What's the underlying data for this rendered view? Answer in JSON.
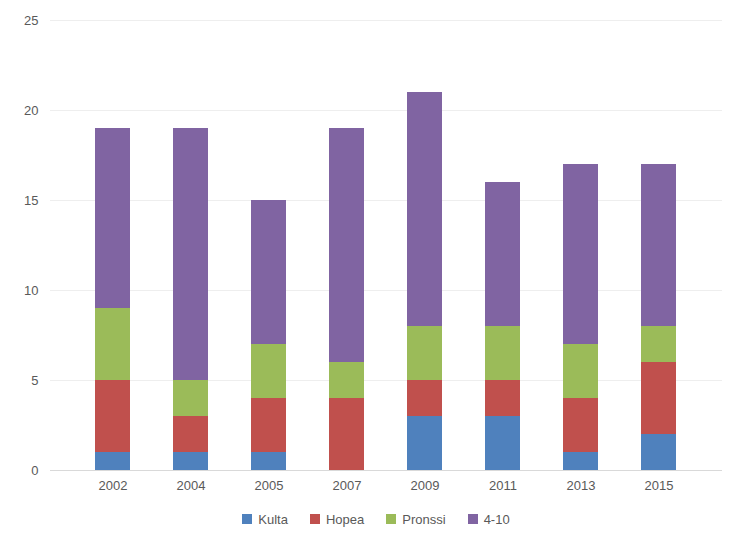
{
  "chart_data": {
    "type": "bar",
    "stacked": true,
    "categories": [
      "2002",
      "2004",
      "2005",
      "2007",
      "2009",
      "2011",
      "2013",
      "2015"
    ],
    "series": [
      {
        "name": "Kulta",
        "color": "#4f81bd",
        "values": [
          1,
          1,
          1,
          0,
          3,
          3,
          1,
          2
        ]
      },
      {
        "name": "Hopea",
        "color": "#c0504d",
        "values": [
          4,
          2,
          3,
          4,
          2,
          2,
          3,
          4
        ]
      },
      {
        "name": "Pronssi",
        "color": "#9bbb59",
        "values": [
          4,
          2,
          3,
          2,
          3,
          3,
          3,
          2
        ]
      },
      {
        "name": "4-10",
        "color": "#8064a2",
        "values": [
          10,
          14,
          8,
          13,
          13,
          8,
          10,
          9
        ]
      }
    ],
    "ylim": [
      0,
      25
    ],
    "yticks": [
      0,
      5,
      10,
      15,
      20,
      25
    ],
    "grid": true,
    "legend": "bottom"
  }
}
